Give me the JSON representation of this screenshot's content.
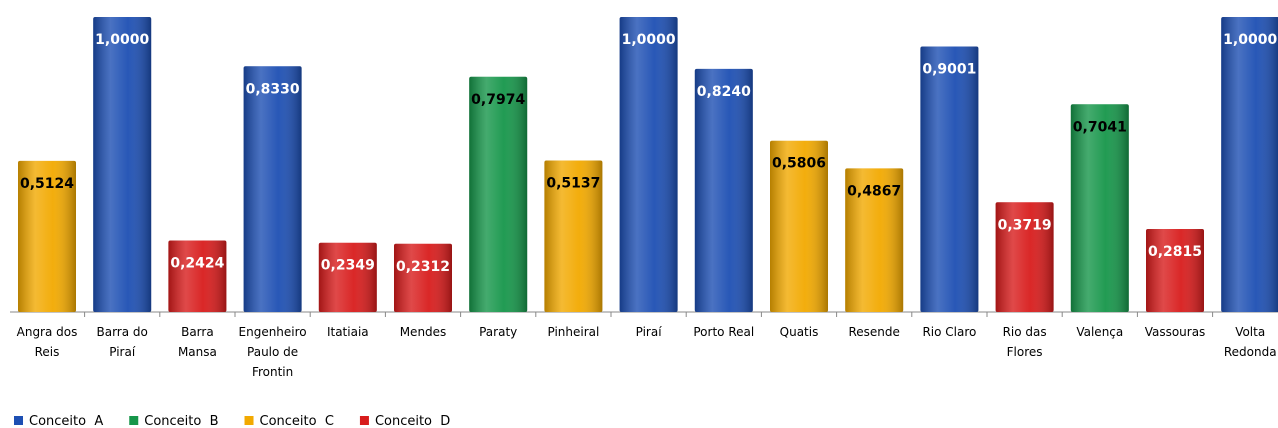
{
  "chart_data": {
    "type": "bar",
    "categories": [
      "Angra dos Reis",
      "Barra do Piraí",
      "Barra Mansa",
      "Engenheiro Paulo de Frontin",
      "Itatiaia",
      "Mendes",
      "Paraty",
      "Pinheiral",
      "Piraí",
      "Porto Real",
      "Quatis",
      "Resende",
      "Rio Claro",
      "Rio das Flores",
      "Valença",
      "Vassouras",
      "Volta Redonda"
    ],
    "series": [
      {
        "name": "Conceito  A",
        "color": "#1d4fb3",
        "label_color": "#ffffff",
        "values": [
          null,
          1,
          null,
          0.833,
          null,
          null,
          null,
          null,
          1,
          0.824,
          null,
          null,
          0.9001,
          null,
          null,
          null,
          1
        ],
        "value_labels": [
          null,
          "1,0000",
          null,
          "0,8330",
          null,
          null,
          null,
          null,
          "1,0000",
          "0,8240",
          null,
          null,
          "0,9001",
          null,
          null,
          null,
          "1,0000"
        ]
      },
      {
        "name": "Conceito  B",
        "color": "#16964a",
        "label_color": "#000000",
        "values": [
          null,
          null,
          null,
          null,
          null,
          null,
          0.7974,
          null,
          null,
          null,
          null,
          null,
          null,
          null,
          0.7041,
          null,
          null
        ],
        "value_labels": [
          null,
          null,
          null,
          null,
          null,
          null,
          "0,7974",
          null,
          null,
          null,
          null,
          null,
          null,
          null,
          "0,7041",
          null,
          null
        ]
      },
      {
        "name": "Conceito  C",
        "color": "#f2a900",
        "label_color": "#000000",
        "values": [
          0.5124,
          null,
          null,
          null,
          null,
          null,
          null,
          0.5137,
          null,
          null,
          0.5806,
          0.4867,
          null,
          null,
          null,
          null,
          null
        ],
        "value_labels": [
          "0,5124",
          null,
          null,
          null,
          null,
          null,
          null,
          "0,5137",
          null,
          null,
          "0,5806",
          "0,4867",
          null,
          null,
          null,
          null,
          null
        ]
      },
      {
        "name": "Conceito  D",
        "color": "#d81c1c",
        "label_color": "#ffffff",
        "values": [
          null,
          null,
          0.2424,
          null,
          0.2349,
          0.2312,
          null,
          null,
          null,
          null,
          null,
          null,
          null,
          0.3719,
          null,
          0.2815,
          null
        ],
        "value_labels": [
          null,
          null,
          "0,2424",
          null,
          "0,2349",
          "0,2312",
          null,
          null,
          null,
          null,
          null,
          null,
          null,
          "0,3719",
          null,
          "0,2815",
          null
        ]
      }
    ],
    "ylim": [
      0,
      1
    ],
    "grid": false,
    "legend": "bottom-left"
  }
}
